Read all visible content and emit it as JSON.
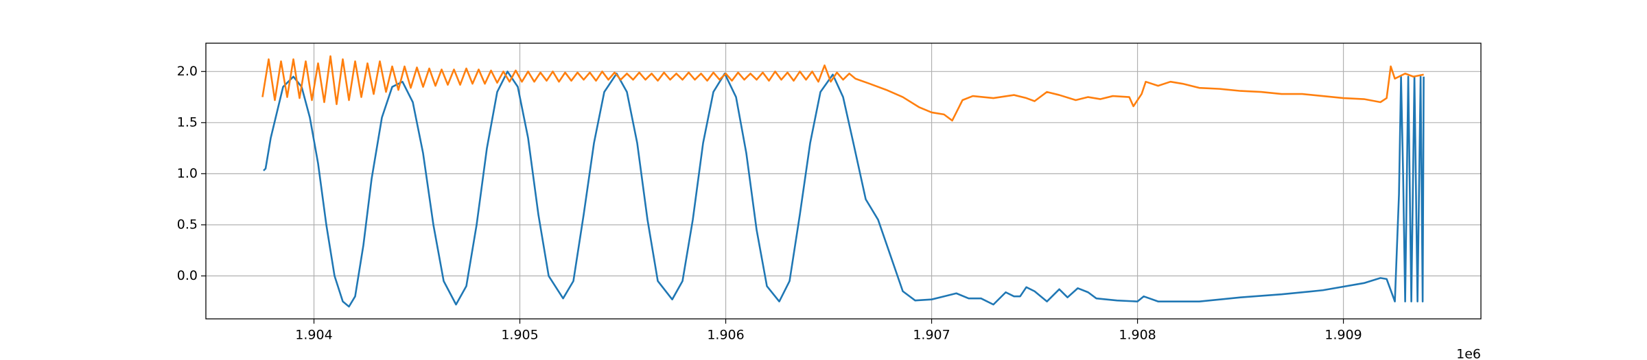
{
  "chart_data": {
    "type": "line",
    "x_offset_label": "1e6",
    "xlim": [
      1903475,
      1909668
    ],
    "ylim": [
      -0.42,
      2.277
    ],
    "xticks": [
      {
        "value": 1904000,
        "label": "1.904"
      },
      {
        "value": 1905000,
        "label": "1.905"
      },
      {
        "value": 1906000,
        "label": "1.906"
      },
      {
        "value": 1907000,
        "label": "1.907"
      },
      {
        "value": 1908000,
        "label": "1.908"
      },
      {
        "value": 1909000,
        "label": "1.909"
      }
    ],
    "yticks": [
      {
        "value": 0,
        "label": "0.0"
      },
      0.5,
      {
        "value": 1,
        "label": "1.0"
      },
      1.5,
      {
        "value": 2,
        "label": "2.0"
      }
    ],
    "grid": true,
    "series": [
      {
        "color": "#1f77b4",
        "x": [
          1903755,
          1903765,
          1903790,
          1903820,
          1903850,
          1903900,
          1903940,
          1903980,
          1904020,
          1904060,
          1904100,
          1904140,
          1904170,
          1904200,
          1904240,
          1904280,
          1904330,
          1904380,
          1904430,
          1904480,
          1904530,
          1904580,
          1904630,
          1904690,
          1904740,
          1904790,
          1904840,
          1904890,
          1904940,
          1904990,
          1905040,
          1905090,
          1905140,
          1905210,
          1905260,
          1905310,
          1905360,
          1905410,
          1905470,
          1905520,
          1905570,
          1905620,
          1905670,
          1905740,
          1905790,
          1905840,
          1905890,
          1905940,
          1905995,
          1906050,
          1906100,
          1906150,
          1906200,
          1906260,
          1906310,
          1906360,
          1906410,
          1906460,
          1906520,
          1906570,
          1906620,
          1906680,
          1906740,
          1906800,
          1906860,
          1906920,
          1907000,
          1907060,
          1907120,
          1907180,
          1907240,
          1907300,
          1907360,
          1907400,
          1907430,
          1907460,
          1907500,
          1907560,
          1907620,
          1907660,
          1907710,
          1907760,
          1907800,
          1907900,
          1908000,
          1908030,
          1908100,
          1908300,
          1908500,
          1908700,
          1908900,
          1909100,
          1909180,
          1909210,
          1909250,
          1909270,
          1909280,
          1909290,
          1909300,
          1909315,
          1909330,
          1909345,
          1909360,
          1909375,
          1909385,
          1909390
        ],
        "values": [
          1.03,
          1.05,
          1.35,
          1.6,
          1.85,
          1.95,
          1.85,
          1.55,
          1.1,
          0.5,
          0.0,
          -0.25,
          -0.3,
          -0.2,
          0.3,
          0.95,
          1.55,
          1.85,
          1.9,
          1.7,
          1.2,
          0.5,
          -0.05,
          -0.28,
          -0.1,
          0.5,
          1.25,
          1.8,
          2.0,
          1.85,
          1.35,
          0.6,
          0.0,
          -0.22,
          -0.05,
          0.6,
          1.3,
          1.8,
          1.98,
          1.8,
          1.3,
          0.55,
          -0.05,
          -0.23,
          -0.05,
          0.55,
          1.3,
          1.8,
          1.98,
          1.75,
          1.2,
          0.45,
          -0.1,
          -0.25,
          -0.05,
          0.6,
          1.3,
          1.8,
          1.97,
          1.75,
          1.3,
          0.75,
          0.55,
          0.2,
          -0.15,
          -0.24,
          -0.23,
          -0.2,
          -0.17,
          -0.22,
          -0.22,
          -0.28,
          -0.16,
          -0.2,
          -0.2,
          -0.11,
          -0.15,
          -0.25,
          -0.13,
          -0.21,
          -0.12,
          -0.16,
          -0.22,
          -0.24,
          -0.25,
          -0.2,
          -0.25,
          -0.25,
          -0.21,
          -0.18,
          -0.14,
          -0.07,
          -0.02,
          -0.03,
          -0.25,
          0.8,
          1.95,
          1.0,
          -0.25,
          1.95,
          -0.25,
          1.95,
          -0.25,
          1.95,
          -0.25,
          1.95
        ]
      },
      {
        "color": "#ff7f0e",
        "x": [
          1903750,
          1903780,
          1903810,
          1903840,
          1903870,
          1903900,
          1903930,
          1903960,
          1903990,
          1904020,
          1904050,
          1904080,
          1904110,
          1904140,
          1904170,
          1904200,
          1904230,
          1904260,
          1904290,
          1904320,
          1904350,
          1904380,
          1904410,
          1904440,
          1904470,
          1904500,
          1904530,
          1904560,
          1904590,
          1904620,
          1904650,
          1904680,
          1904710,
          1904740,
          1904770,
          1904800,
          1904830,
          1904860,
          1904890,
          1904920,
          1904950,
          1904980,
          1905010,
          1905040,
          1905070,
          1905100,
          1905130,
          1905160,
          1905190,
          1905220,
          1905250,
          1905280,
          1905310,
          1905340,
          1905370,
          1905400,
          1905430,
          1905460,
          1905490,
          1905520,
          1905550,
          1905580,
          1905610,
          1905640,
          1905670,
          1905700,
          1905730,
          1905760,
          1905790,
          1905820,
          1905850,
          1905880,
          1905910,
          1905940,
          1905970,
          1906000,
          1906030,
          1906060,
          1906090,
          1906120,
          1906150,
          1906180,
          1906210,
          1906240,
          1906270,
          1906300,
          1906330,
          1906360,
          1906390,
          1906420,
          1906450,
          1906480,
          1906510,
          1906540,
          1906570,
          1906600,
          1906630,
          1906700,
          1906780,
          1906860,
          1906940,
          1907000,
          1907060,
          1907100,
          1907120,
          1907150,
          1907200,
          1907300,
          1907400,
          1907460,
          1907500,
          1907560,
          1907620,
          1907700,
          1907760,
          1907820,
          1907880,
          1907960,
          1907980,
          1908020,
          1908040,
          1908100,
          1908160,
          1908220,
          1908300,
          1908400,
          1908500,
          1908600,
          1908700,
          1908800,
          1908900,
          1909000,
          1909100,
          1909180,
          1909210,
          1909230,
          1909250,
          1909300,
          1909340,
          1909390
        ],
        "values": [
          1.75,
          2.12,
          1.72,
          2.1,
          1.75,
          2.12,
          1.74,
          2.1,
          1.72,
          2.08,
          1.7,
          2.15,
          1.68,
          2.12,
          1.72,
          2.1,
          1.75,
          2.08,
          1.78,
          2.1,
          1.8,
          2.05,
          1.82,
          2.05,
          1.84,
          2.04,
          1.85,
          2.03,
          1.86,
          2.02,
          1.87,
          2.02,
          1.87,
          2.03,
          1.88,
          2.02,
          1.88,
          2.01,
          1.89,
          2.0,
          1.9,
          2.01,
          1.9,
          2.0,
          1.9,
          1.99,
          1.91,
          2.0,
          1.9,
          1.99,
          1.91,
          1.99,
          1.92,
          1.99,
          1.91,
          2.0,
          1.92,
          1.99,
          1.92,
          1.98,
          1.92,
          1.99,
          1.92,
          1.98,
          1.91,
          1.99,
          1.92,
          1.98,
          1.92,
          1.99,
          1.92,
          1.98,
          1.91,
          1.99,
          1.92,
          1.98,
          1.91,
          1.99,
          1.92,
          1.98,
          1.92,
          1.99,
          1.91,
          2.0,
          1.92,
          1.99,
          1.91,
          2.0,
          1.92,
          2.0,
          1.9,
          2.06,
          1.9,
          1.99,
          1.92,
          1.98,
          1.93,
          1.88,
          1.82,
          1.75,
          1.65,
          1.6,
          1.58,
          1.52,
          1.6,
          1.72,
          1.76,
          1.74,
          1.77,
          1.74,
          1.71,
          1.8,
          1.77,
          1.72,
          1.75,
          1.73,
          1.76,
          1.75,
          1.66,
          1.78,
          1.9,
          1.86,
          1.9,
          1.88,
          1.84,
          1.83,
          1.81,
          1.8,
          1.78,
          1.78,
          1.76,
          1.74,
          1.73,
          1.7,
          1.74,
          2.05,
          1.93,
          1.98,
          1.95,
          1.97
        ]
      }
    ]
  }
}
